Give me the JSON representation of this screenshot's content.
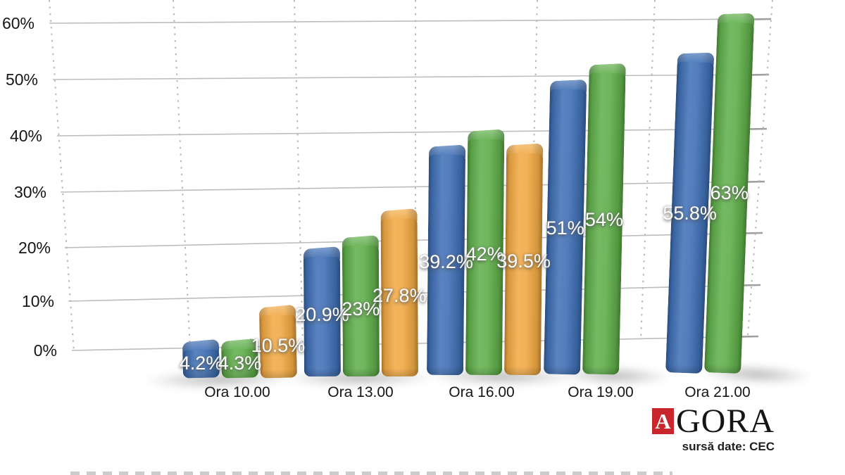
{
  "chart_data": {
    "type": "bar",
    "categories": [
      "Ora 10.00",
      "Ora 13.00",
      "Ora 16.00",
      "Ora 19.00",
      "Ora 21.00"
    ],
    "series": [
      {
        "name": "blue",
        "color": "#3f6fb4",
        "values": [
          4.2,
          20.9,
          39.2,
          51,
          55.8
        ],
        "labels": [
          "4.2%",
          "20.9%",
          "39.2%",
          "51%",
          "55.8%"
        ]
      },
      {
        "name": "green",
        "color": "#5fae4a",
        "values": [
          4.3,
          23,
          42,
          54,
          63
        ],
        "labels": [
          "4.3%",
          "23%",
          "42%",
          "54%",
          "63%"
        ]
      },
      {
        "name": "orange",
        "color": "#f0a843",
        "values": [
          10.5,
          27.8,
          39.5,
          null,
          null
        ],
        "labels": [
          "10.5%",
          "27.8%",
          "39.5%",
          null,
          null
        ]
      }
    ],
    "yticks_top_to_bottom": [
      "60%",
      "50%",
      "40%",
      "30%",
      "20%",
      "10%",
      "0%"
    ],
    "ylim": [
      0,
      60
    ],
    "grid": true,
    "legend": "none"
  },
  "branding": {
    "logo_mark": "A",
    "logo_text": "GORA",
    "logo_color": "#c9252c",
    "source": "sursă date: CEC"
  }
}
